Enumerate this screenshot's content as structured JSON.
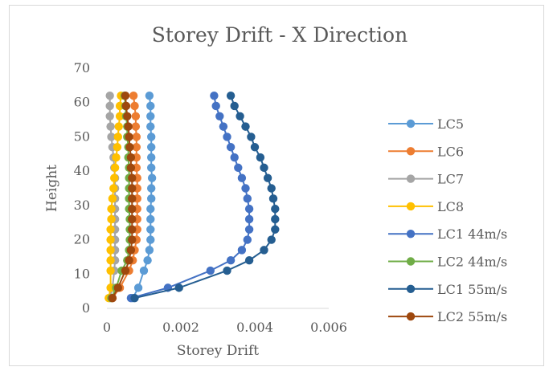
{
  "chart_data": {
    "type": "line",
    "title": "Storey Drift - X Direction",
    "xlabel": "Storey Drift",
    "ylabel": "Height",
    "xlim": [
      0,
      0.006
    ],
    "ylim": [
      0,
      70
    ],
    "x_ticks": [
      "0",
      "0.002",
      "0.004",
      "0.006"
    ],
    "y_ticks": [
      "0",
      "10",
      "20",
      "30",
      "40",
      "50",
      "60",
      "70"
    ],
    "grid": false,
    "legend_position": "right",
    "heights": [
      3,
      6,
      11,
      14,
      17,
      20,
      23,
      26,
      29,
      32,
      35,
      38,
      41,
      44,
      47,
      50,
      53,
      56,
      59,
      62
    ],
    "series": [
      {
        "name": "LC5",
        "color": "#5b9bd5",
        "values": [
          0.0007,
          0.00085,
          0.001,
          0.0011,
          0.00115,
          0.00118,
          0.00118,
          0.00118,
          0.00118,
          0.0012,
          0.0012,
          0.00122,
          0.0012,
          0.0012,
          0.0012,
          0.0012,
          0.00118,
          0.00118,
          0.00118,
          0.00115
        ]
      },
      {
        "name": "LC6",
        "color": "#ed7d31",
        "values": [
          0.00015,
          0.00035,
          0.0006,
          0.0007,
          0.00075,
          0.0008,
          0.00082,
          0.00082,
          0.00082,
          0.00082,
          0.00082,
          0.00082,
          0.0008,
          0.0008,
          0.0008,
          0.0008,
          0.00078,
          0.00078,
          0.00075,
          0.00072
        ]
      },
      {
        "name": "LC7",
        "color": "#a5a5a5",
        "values": [
          8e-05,
          0.00015,
          0.0002,
          0.00022,
          0.00022,
          0.00022,
          0.00022,
          0.00022,
          0.00022,
          0.00022,
          0.00022,
          0.00022,
          0.0002,
          0.00018,
          0.00015,
          0.00012,
          0.0001,
          8e-05,
          8e-05,
          8e-05
        ]
      },
      {
        "name": "LC8",
        "color": "#ffc000",
        "values": [
          5e-05,
          0.0001,
          0.0001,
          0.0001,
          0.0001,
          0.0001,
          0.0001,
          0.00012,
          0.00012,
          0.00015,
          0.00018,
          0.0002,
          0.00022,
          0.00025,
          0.00028,
          0.0003,
          0.00032,
          0.00035,
          0.00035,
          0.00038
        ]
      },
      {
        "name": "LC1 44m/s",
        "color": "#4472c4",
        "values": [
          0.00065,
          0.00165,
          0.0028,
          0.00335,
          0.00365,
          0.0038,
          0.00385,
          0.00385,
          0.00385,
          0.0038,
          0.00375,
          0.00365,
          0.00355,
          0.00345,
          0.00335,
          0.00325,
          0.00315,
          0.00305,
          0.00295,
          0.0029
        ]
      },
      {
        "name": "LC2 44m/s",
        "color": "#70ad47",
        "values": [
          0.00012,
          0.00025,
          0.0004,
          0.00055,
          0.0006,
          0.00062,
          0.00062,
          0.00062,
          0.0006,
          0.0006,
          0.0006,
          0.0006,
          0.0006,
          0.00058,
          0.00058,
          0.00055,
          0.00055,
          0.00052,
          0.0005,
          0.00048
        ]
      },
      {
        "name": "LC1 55m/s",
        "color": "#255e91",
        "values": [
          0.00075,
          0.00195,
          0.00325,
          0.00385,
          0.00425,
          0.00445,
          0.00455,
          0.00455,
          0.00455,
          0.0045,
          0.00445,
          0.00435,
          0.00425,
          0.00415,
          0.004,
          0.0039,
          0.00375,
          0.0036,
          0.00345,
          0.00335
        ]
      },
      {
        "name": "LC2 55m/s",
        "color": "#9e480e",
        "values": [
          0.00015,
          0.0003,
          0.0005,
          0.0006,
          0.00065,
          0.00068,
          0.00068,
          0.00068,
          0.00068,
          0.00068,
          0.00068,
          0.00068,
          0.00065,
          0.00065,
          0.00062,
          0.0006,
          0.00058,
          0.00055,
          0.00052,
          0.0005
        ]
      }
    ]
  }
}
